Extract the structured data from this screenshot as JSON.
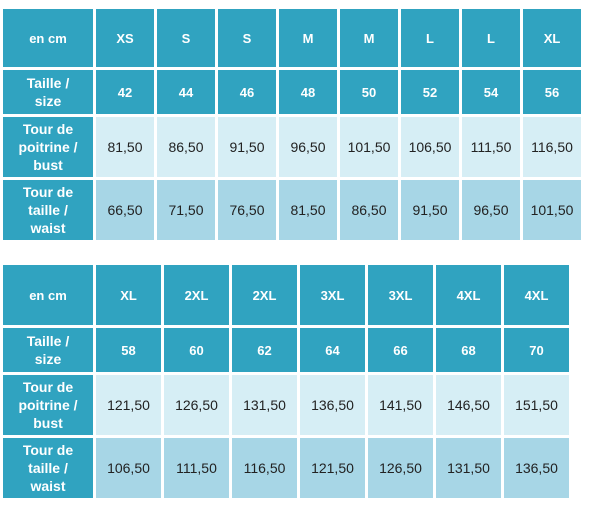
{
  "tables": [
    {
      "header_label": "en cm",
      "sizes": [
        "XS",
        "S",
        "S",
        "M",
        "M",
        "L",
        "L",
        "XL"
      ],
      "row_labels": {
        "size": [
          "Taille /",
          "size"
        ],
        "bust": [
          "Tour de",
          "poitrine /",
          "bust"
        ],
        "waist": [
          "Tour de",
          "taille /",
          "waist"
        ]
      },
      "size_numbers": [
        "42",
        "44",
        "46",
        "48",
        "50",
        "52",
        "54",
        "56"
      ],
      "bust": [
        "81,50",
        "86,50",
        "91,50",
        "96,50",
        "101,50",
        "106,50",
        "111,50",
        "116,50"
      ],
      "waist": [
        "66,50",
        "71,50",
        "76,50",
        "81,50",
        "86,50",
        "91,50",
        "96,50",
        "101,50"
      ]
    },
    {
      "header_label": "en cm",
      "sizes": [
        "XL",
        "2XL",
        "2XL",
        "3XL",
        "3XL",
        "4XL",
        "4XL"
      ],
      "row_labels": {
        "size": [
          "Taille /",
          "size"
        ],
        "bust": [
          "Tour de",
          "poitrine /",
          "bust"
        ],
        "waist": [
          "Tour de",
          "taille /",
          "waist"
        ]
      },
      "size_numbers": [
        "58",
        "60",
        "62",
        "64",
        "66",
        "68",
        "70"
      ],
      "bust": [
        "121,50",
        "126,50",
        "131,50",
        "136,50",
        "141,50",
        "146,50",
        "151,50"
      ],
      "waist": [
        "106,50",
        "111,50",
        "116,50",
        "121,50",
        "126,50",
        "131,50",
        "136,50"
      ]
    }
  ],
  "colors": {
    "header_bg": "#30a3c0",
    "bust_row_bg": "#d6eef5",
    "waist_row_bg": "#a7d6e6",
    "header_text": "#ffffff",
    "body_text": "#222222"
  }
}
